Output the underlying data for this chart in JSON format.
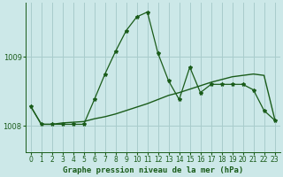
{
  "title": "Graphe pression niveau de la mer (hPa)",
  "bg_color": "#cce8e8",
  "line_color": "#1a5c1a",
  "grid_color": "#a8cccc",
  "xlim": [
    -0.5,
    23.5
  ],
  "ylim": [
    1007.62,
    1009.78
  ],
  "y_ticks": [
    1008,
    1009
  ],
  "x_ticks": [
    0,
    1,
    2,
    3,
    4,
    5,
    6,
    7,
    8,
    9,
    10,
    11,
    12,
    13,
    14,
    15,
    16,
    17,
    18,
    19,
    20,
    21,
    22,
    23
  ],
  "main_y": [
    1008.28,
    1008.02,
    1008.02,
    1008.02,
    1008.02,
    1008.02,
    1008.38,
    1008.75,
    1009.08,
    1009.38,
    1009.58,
    1009.65,
    1009.05,
    1008.65,
    1008.38,
    1008.85,
    1008.48,
    1008.6,
    1008.6,
    1008.6,
    1008.6,
    1008.52,
    1008.22,
    1008.08
  ],
  "trend_y": [
    1008.28,
    1008.02,
    1008.02,
    1008.04,
    1008.05,
    1008.06,
    1008.1,
    1008.13,
    1008.17,
    1008.22,
    1008.27,
    1008.32,
    1008.38,
    1008.44,
    1008.48,
    1008.53,
    1008.58,
    1008.63,
    1008.67,
    1008.71,
    1008.73,
    1008.75,
    1008.73,
    1008.1
  ],
  "title_fontsize": 6.5,
  "tick_fontsize": 5.5
}
